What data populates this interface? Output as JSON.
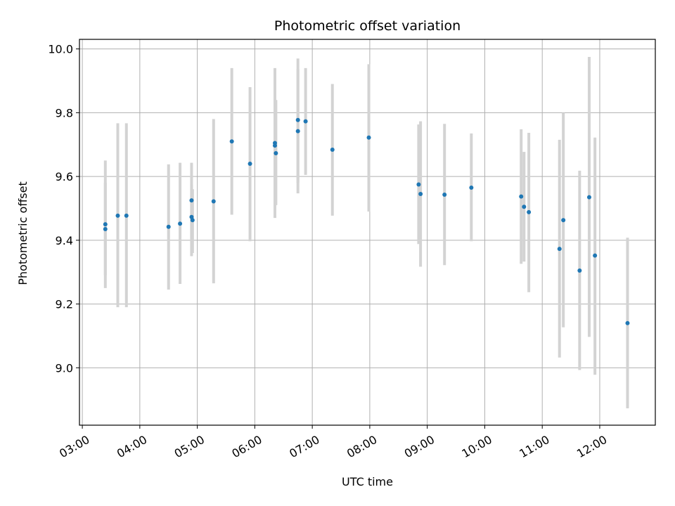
{
  "chart_data": {
    "type": "scatter",
    "title": "Photometric offset variation",
    "xlabel": "UTC time",
    "ylabel": "Photometric offset",
    "x_tick_labels": [
      "03:00",
      "04:00",
      "05:00",
      "06:00",
      "07:00",
      "08:00",
      "09:00",
      "10:00",
      "11:00",
      "12:00"
    ],
    "y_tick_labels": [
      "9.0",
      "9.2",
      "9.4",
      "9.6",
      "9.8",
      "10.0"
    ],
    "x_ticks": [
      "03:00",
      "04:00",
      "05:00",
      "06:00",
      "07:00",
      "08:00",
      "09:00",
      "10:00",
      "11:00",
      "12:00"
    ],
    "y_ticks": [
      9.0,
      9.2,
      9.4,
      9.6,
      9.8,
      10.0
    ],
    "xlim": [
      "02:57",
      "12:58"
    ],
    "ylim": [
      8.82,
      10.03
    ],
    "grid": true,
    "point_color": "#1f77b4",
    "errorbar_color": "#d3d3d3",
    "series": [
      {
        "points": [
          {
            "x": "03:24",
            "y": 9.45,
            "ylo": 9.25,
            "yhi": 9.65
          },
          {
            "x": "03:24",
            "y": 9.435,
            "ylo": 9.29,
            "yhi": 9.58
          },
          {
            "x": "03:37",
            "y": 9.477,
            "ylo": 9.19,
            "yhi": 9.767
          },
          {
            "x": "03:46",
            "y": 9.477,
            "ylo": 9.19,
            "yhi": 9.767
          },
          {
            "x": "04:30",
            "y": 9.442,
            "ylo": 9.245,
            "yhi": 9.638
          },
          {
            "x": "04:42",
            "y": 9.452,
            "ylo": 9.263,
            "yhi": 9.643
          },
          {
            "x": "04:54",
            "y": 9.525,
            "ylo": 9.4,
            "yhi": 9.643
          },
          {
            "x": "04:54",
            "y": 9.473,
            "ylo": 9.35,
            "yhi": 9.575
          },
          {
            "x": "04:55",
            "y": 9.463,
            "ylo": 9.36,
            "yhi": 9.56
          },
          {
            "x": "05:17",
            "y": 9.522,
            "ylo": 9.265,
            "yhi": 9.78
          },
          {
            "x": "05:36",
            "y": 9.71,
            "ylo": 9.48,
            "yhi": 9.94
          },
          {
            "x": "05:55",
            "y": 9.64,
            "ylo": 9.397,
            "yhi": 9.88
          },
          {
            "x": "06:21",
            "y": 9.705,
            "ylo": 9.47,
            "yhi": 9.94
          },
          {
            "x": "06:21",
            "y": 9.697,
            "ylo": 9.55,
            "yhi": 9.845
          },
          {
            "x": "06:22",
            "y": 9.673,
            "ylo": 9.51,
            "yhi": 9.84
          },
          {
            "x": "06:45",
            "y": 9.777,
            "ylo": 9.58,
            "yhi": 9.97
          },
          {
            "x": "06:45",
            "y": 9.742,
            "ylo": 9.547,
            "yhi": 9.937
          },
          {
            "x": "06:53",
            "y": 9.773,
            "ylo": 9.605,
            "yhi": 9.94
          },
          {
            "x": "07:21",
            "y": 9.684,
            "ylo": 9.477,
            "yhi": 9.89
          },
          {
            "x": "07:59",
            "y": 9.722,
            "ylo": 9.49,
            "yhi": 9.952
          },
          {
            "x": "08:51",
            "y": 9.575,
            "ylo": 9.388,
            "yhi": 9.763
          },
          {
            "x": "08:53",
            "y": 9.545,
            "ylo": 9.317,
            "yhi": 9.773
          },
          {
            "x": "09:18",
            "y": 9.543,
            "ylo": 9.322,
            "yhi": 9.765
          },
          {
            "x": "09:46",
            "y": 9.565,
            "ylo": 9.397,
            "yhi": 9.735
          },
          {
            "x": "10:38",
            "y": 9.537,
            "ylo": 9.326,
            "yhi": 9.748
          },
          {
            "x": "10:41",
            "y": 9.505,
            "ylo": 9.333,
            "yhi": 9.677
          },
          {
            "x": "10:46",
            "y": 9.488,
            "ylo": 9.237,
            "yhi": 9.737
          },
          {
            "x": "11:18",
            "y": 9.373,
            "ylo": 9.032,
            "yhi": 9.715
          },
          {
            "x": "11:22",
            "y": 9.463,
            "ylo": 9.127,
            "yhi": 9.8
          },
          {
            "x": "11:39",
            "y": 9.305,
            "ylo": 8.993,
            "yhi": 9.618
          },
          {
            "x": "11:49",
            "y": 9.535,
            "ylo": 9.097,
            "yhi": 9.975
          },
          {
            "x": "11:55",
            "y": 9.352,
            "ylo": 8.978,
            "yhi": 9.722
          },
          {
            "x": "12:29",
            "y": 9.14,
            "ylo": 8.873,
            "yhi": 9.408
          }
        ]
      }
    ]
  }
}
